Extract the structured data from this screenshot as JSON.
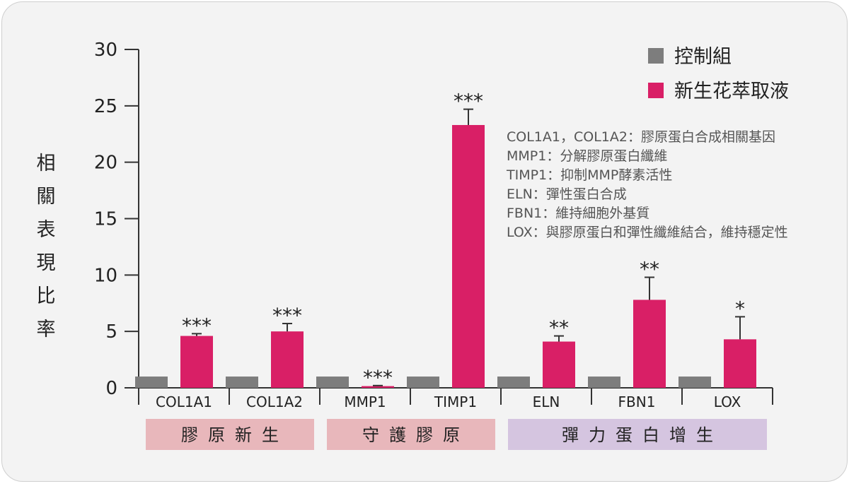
{
  "chart_data": {
    "type": "bar",
    "ylabel": "相關表現比率",
    "ylim": [
      0,
      30
    ],
    "yticks": [
      0,
      5,
      10,
      15,
      20,
      25,
      30
    ],
    "categories": [
      "COL1A1",
      "COL1A2",
      "MMP1",
      "TIMP1",
      "ELN",
      "FBN1",
      "LOX"
    ],
    "series": [
      {
        "name": "控制組",
        "color": "#7d7d7d",
        "values": [
          1,
          1,
          1,
          1,
          1,
          1,
          1
        ],
        "errors": [
          0,
          0,
          0,
          0,
          0,
          0,
          0
        ]
      },
      {
        "name": "新生花萃取液",
        "color": "#d91f66",
        "values": [
          4.6,
          5.0,
          0.15,
          23.3,
          4.1,
          7.8,
          4.3
        ],
        "errors": [
          0.2,
          0.7,
          0.05,
          1.4,
          0.5,
          2.0,
          2.0
        ]
      }
    ],
    "significance": [
      "***",
      "***",
      "***",
      "***",
      "**",
      "**",
      "*"
    ],
    "legend_position": "top-right",
    "grid": false,
    "annotations": [
      "COL1A1，COL1A2：膠原蛋白合成相關基因",
      "MMP1：分解膠原蛋白纖維",
      "TIMP1：抑制MMP酵素活性",
      "ELN：彈性蛋白合成",
      "FBN1：維持細胞外基質",
      "LOX：與膠原蛋白和彈性纖維結合，維持穩定性"
    ],
    "groups": [
      {
        "label": "膠原新生",
        "color": "#e8b7bb",
        "categories": [
          "COL1A1",
          "COL1A2"
        ]
      },
      {
        "label": "守護膠原",
        "color": "#e8b7bb",
        "categories": [
          "MMP1",
          "TIMP1"
        ]
      },
      {
        "label": "彈力蛋白增生",
        "color": "#d5c5e0",
        "categories": [
          "ELN",
          "FBN1",
          "LOX"
        ]
      }
    ]
  }
}
